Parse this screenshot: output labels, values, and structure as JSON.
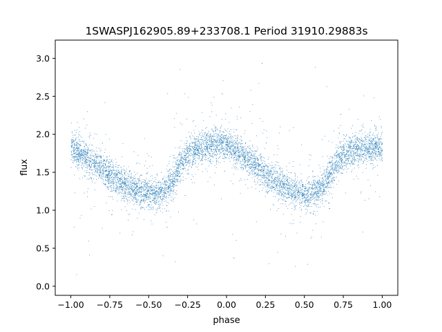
{
  "chart_data": {
    "type": "scatter",
    "title": "1SWASPJ162905.89+233708.1 Period 31910.29883s",
    "xlabel": "phase",
    "ylabel": "flux",
    "xlim": [
      -1.1,
      1.1
    ],
    "ylim": [
      -0.12,
      3.24
    ],
    "xticks": [
      {
        "value": -1.0,
        "label": "−1.00"
      },
      {
        "value": -0.75,
        "label": "−0.75"
      },
      {
        "value": -0.5,
        "label": "−0.50"
      },
      {
        "value": -0.25,
        "label": "−0.25"
      },
      {
        "value": 0.0,
        "label": "0.00"
      },
      {
        "value": 0.25,
        "label": "0.25"
      },
      {
        "value": 0.5,
        "label": "0.50"
      },
      {
        "value": 0.75,
        "label": "0.75"
      },
      {
        "value": 1.0,
        "label": "1.00"
      }
    ],
    "yticks": [
      {
        "value": 0.0,
        "label": "0.0"
      },
      {
        "value": 0.5,
        "label": "0.5"
      },
      {
        "value": 1.0,
        "label": "1.0"
      },
      {
        "value": 1.5,
        "label": "1.5"
      },
      {
        "value": 2.0,
        "label": "2.0"
      },
      {
        "value": 2.5,
        "label": "2.5"
      },
      {
        "value": 3.0,
        "label": "3.0"
      }
    ],
    "grid": false,
    "marker_color": "#1f77b4",
    "series": [
      {
        "points": [
          [
            -1.0,
            1.82
          ],
          [
            -0.95,
            1.76
          ],
          [
            -0.9,
            1.7
          ],
          [
            -0.85,
            1.62
          ],
          [
            -0.8,
            1.55
          ],
          [
            -0.75,
            1.47
          ],
          [
            -0.7,
            1.4
          ],
          [
            -0.65,
            1.34
          ],
          [
            -0.6,
            1.29
          ],
          [
            -0.55,
            1.25
          ],
          [
            -0.5,
            1.22
          ],
          [
            -0.45,
            1.21
          ],
          [
            -0.4,
            1.26
          ],
          [
            -0.35,
            1.4
          ],
          [
            -0.3,
            1.6
          ],
          [
            -0.25,
            1.73
          ],
          [
            -0.2,
            1.8
          ],
          [
            -0.15,
            1.84
          ],
          [
            -0.1,
            1.87
          ],
          [
            -0.05,
            1.88
          ],
          [
            0.0,
            1.85
          ],
          [
            0.05,
            1.79
          ],
          [
            0.1,
            1.72
          ],
          [
            0.15,
            1.64
          ],
          [
            0.2,
            1.57
          ],
          [
            0.25,
            1.49
          ],
          [
            0.3,
            1.41
          ],
          [
            0.35,
            1.34
          ],
          [
            0.4,
            1.28
          ],
          [
            0.45,
            1.23
          ],
          [
            0.5,
            1.2
          ],
          [
            0.55,
            1.2
          ],
          [
            0.6,
            1.26
          ],
          [
            0.65,
            1.42
          ],
          [
            0.7,
            1.6
          ],
          [
            0.75,
            1.73
          ],
          [
            0.8,
            1.79
          ],
          [
            0.85,
            1.81
          ],
          [
            0.9,
            1.83
          ],
          [
            0.95,
            1.84
          ],
          [
            1.0,
            1.83
          ]
        ]
      }
    ]
  }
}
